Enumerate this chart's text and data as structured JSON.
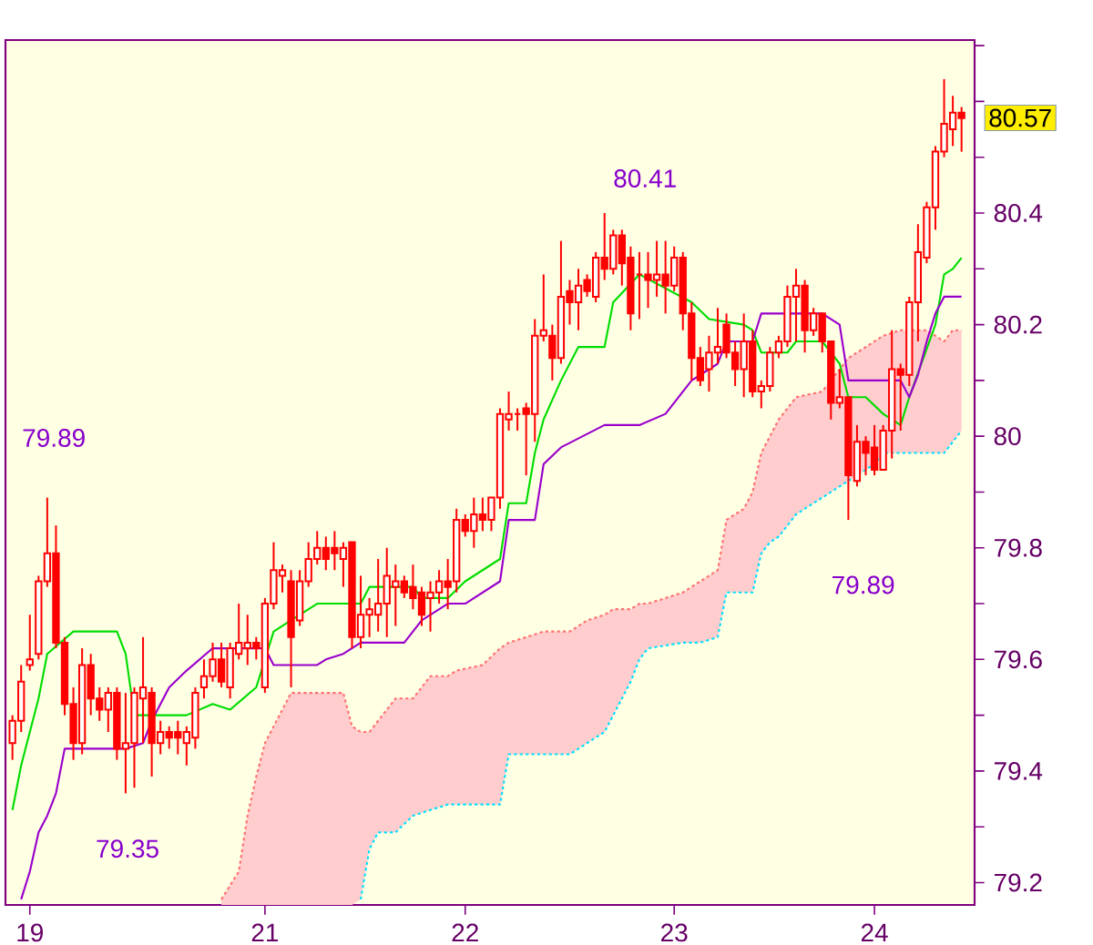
{
  "chart_data": {
    "type": "candlestick",
    "color": "#ff0000",
    "categories": [
      null,
      null,
      "19",
      null,
      null,
      null,
      null,
      null,
      null,
      null,
      null,
      null,
      null,
      null,
      null,
      null,
      null,
      null,
      null,
      null,
      null,
      null,
      null,
      null,
      null,
      null,
      null,
      null,
      null,
      "21",
      null,
      null,
      null,
      null,
      null,
      null,
      null,
      null,
      null,
      null,
      null,
      null,
      null,
      null,
      null,
      null,
      null,
      null,
      null,
      null,
      null,
      null,
      "22",
      null,
      null,
      null,
      null,
      null,
      null,
      null,
      null,
      null,
      null,
      null,
      null,
      null,
      null,
      null,
      null,
      null,
      null,
      null,
      null,
      null,
      null,
      null,
      "23",
      null,
      null,
      null,
      null,
      null,
      null,
      null,
      null,
      null,
      null,
      null,
      null,
      null,
      null,
      null,
      null,
      null,
      null,
      null,
      null,
      null,
      null,
      "24",
      null,
      null,
      null,
      null,
      null,
      null,
      null,
      null,
      null,
      null
    ],
    "ohlc": [
      [
        79.45,
        79.5,
        79.42,
        79.49
      ],
      [
        79.49,
        79.59,
        79.47,
        79.56
      ],
      [
        79.59,
        79.68,
        79.58,
        79.6
      ],
      [
        79.61,
        79.75,
        79.6,
        79.74
      ],
      [
        79.74,
        79.89,
        79.73,
        79.79
      ],
      [
        79.79,
        79.84,
        79.62,
        79.63
      ],
      [
        79.63,
        79.64,
        79.5,
        79.52
      ],
      [
        79.52,
        79.55,
        79.42,
        79.45
      ],
      [
        79.45,
        79.62,
        79.43,
        79.59
      ],
      [
        79.59,
        79.61,
        79.5,
        79.53
      ],
      [
        79.53,
        79.55,
        79.49,
        79.51
      ],
      [
        79.51,
        79.55,
        79.47,
        79.54
      ],
      [
        79.54,
        79.55,
        79.42,
        79.44
      ],
      [
        79.44,
        79.54,
        79.36,
        79.45
      ],
      [
        79.45,
        79.55,
        79.37,
        79.54
      ],
      [
        79.53,
        79.64,
        79.45,
        79.55
      ],
      [
        79.54,
        79.55,
        79.39,
        79.45
      ],
      [
        79.45,
        79.49,
        79.43,
        79.47
      ],
      [
        79.47,
        79.48,
        79.44,
        79.46
      ],
      [
        79.47,
        79.49,
        79.43,
        79.46
      ],
      [
        79.45,
        79.48,
        79.41,
        79.47
      ],
      [
        79.46,
        79.55,
        79.44,
        79.54
      ],
      [
        79.55,
        79.6,
        79.53,
        79.57
      ],
      [
        79.57,
        79.63,
        79.56,
        79.6
      ],
      [
        79.6,
        79.63,
        79.55,
        79.56
      ],
      [
        79.55,
        79.63,
        79.53,
        79.62
      ],
      [
        79.61,
        79.7,
        79.6,
        79.63
      ],
      [
        79.62,
        79.68,
        79.59,
        79.63
      ],
      [
        79.63,
        79.64,
        79.6,
        79.62
      ],
      [
        79.55,
        79.71,
        79.54,
        79.7
      ],
      [
        79.7,
        79.81,
        79.69,
        79.76
      ],
      [
        79.75,
        79.77,
        79.72,
        79.76
      ],
      [
        79.74,
        79.76,
        79.55,
        79.64
      ],
      [
        79.67,
        79.76,
        79.66,
        79.74
      ],
      [
        79.74,
        79.81,
        79.73,
        79.78
      ],
      [
        79.78,
        79.83,
        79.77,
        79.8
      ],
      [
        79.8,
        79.82,
        79.76,
        79.78
      ],
      [
        79.8,
        79.83,
        79.76,
        79.79
      ],
      [
        79.78,
        79.81,
        79.73,
        79.8
      ],
      [
        79.81,
        79.81,
        79.62,
        79.64
      ],
      [
        79.64,
        79.75,
        79.62,
        79.68
      ],
      [
        79.68,
        79.71,
        79.64,
        79.69
      ],
      [
        79.68,
        79.78,
        79.65,
        79.7
      ],
      [
        79.7,
        79.8,
        79.64,
        79.75
      ],
      [
        79.73,
        79.77,
        79.66,
        79.74
      ],
      [
        79.74,
        79.75,
        79.71,
        79.72
      ],
      [
        79.73,
        79.77,
        79.69,
        79.71
      ],
      [
        79.72,
        79.73,
        79.66,
        79.68
      ],
      [
        79.71,
        79.74,
        79.65,
        79.72
      ],
      [
        79.72,
        79.76,
        79.7,
        79.74
      ],
      [
        79.74,
        79.78,
        79.69,
        79.73
      ],
      [
        79.74,
        79.87,
        79.72,
        79.85
      ],
      [
        79.85,
        79.86,
        79.82,
        79.83
      ],
      [
        79.83,
        79.89,
        79.8,
        79.86
      ],
      [
        79.86,
        79.89,
        79.83,
        79.85
      ],
      [
        79.85,
        79.89,
        79.83,
        79.89
      ],
      [
        79.89,
        80.05,
        79.87,
        80.04
      ],
      [
        80.03,
        80.08,
        80.01,
        80.04
      ],
      [
        80.04,
        80.05,
        80.01,
        80.04
      ],
      [
        80.05,
        80.06,
        79.93,
        80.04
      ],
      [
        80.04,
        80.21,
        79.99,
        80.18
      ],
      [
        80.18,
        80.29,
        80.17,
        80.19
      ],
      [
        80.18,
        80.2,
        80.1,
        80.14
      ],
      [
        80.14,
        80.35,
        80.13,
        80.25
      ],
      [
        80.26,
        80.28,
        80.2,
        80.24
      ],
      [
        80.24,
        80.3,
        80.19,
        80.27
      ],
      [
        80.28,
        80.29,
        80.25,
        80.26
      ],
      [
        80.25,
        80.33,
        80.24,
        80.32
      ],
      [
        80.32,
        80.4,
        80.28,
        80.3
      ],
      [
        80.3,
        80.37,
        80.29,
        80.36
      ],
      [
        80.36,
        80.37,
        80.27,
        80.31
      ],
      [
        80.32,
        80.34,
        80.19,
        80.22
      ],
      [
        80.29,
        80.33,
        80.21,
        80.29
      ],
      [
        80.29,
        80.33,
        80.23,
        80.28
      ],
      [
        80.28,
        80.35,
        80.25,
        80.29
      ],
      [
        80.29,
        80.35,
        80.22,
        80.27
      ],
      [
        80.27,
        80.34,
        80.26,
        80.32
      ],
      [
        80.32,
        80.33,
        80.19,
        80.22
      ],
      [
        80.22,
        80.24,
        80.1,
        80.14
      ],
      [
        80.14,
        80.16,
        80.09,
        80.1
      ],
      [
        80.12,
        80.18,
        80.08,
        80.15
      ],
      [
        80.15,
        80.23,
        80.13,
        80.16
      ],
      [
        80.2,
        80.22,
        80.14,
        80.15
      ],
      [
        80.15,
        80.17,
        80.09,
        80.12
      ],
      [
        80.12,
        80.22,
        80.07,
        80.17
      ],
      [
        80.17,
        80.19,
        80.07,
        80.08
      ],
      [
        80.08,
        80.1,
        80.05,
        80.09
      ],
      [
        80.09,
        80.16,
        80.08,
        80.15
      ],
      [
        80.15,
        80.18,
        80.14,
        80.17
      ],
      [
        80.17,
        80.27,
        80.16,
        80.25
      ],
      [
        80.25,
        80.3,
        80.17,
        80.27
      ],
      [
        80.27,
        80.28,
        80.15,
        80.19
      ],
      [
        80.19,
        80.23,
        80.18,
        80.22
      ],
      [
        80.22,
        80.22,
        80.15,
        80.17
      ],
      [
        80.17,
        80.17,
        80.03,
        80.06
      ],
      [
        80.06,
        80.12,
        80.05,
        80.07
      ],
      [
        80.07,
        80.07,
        79.85,
        79.93
      ],
      [
        79.92,
        80.02,
        79.91,
        79.99
      ],
      [
        79.99,
        80.0,
        79.93,
        79.97
      ],
      [
        79.98,
        80.02,
        79.93,
        79.94
      ],
      [
        79.94,
        80.02,
        79.94,
        80.01
      ],
      [
        80.01,
        80.19,
        79.96,
        80.12
      ],
      [
        80.12,
        80.13,
        80.01,
        80.11
      ],
      [
        80.11,
        80.25,
        80.09,
        80.24
      ],
      [
        80.24,
        80.38,
        80.17,
        80.33
      ],
      [
        80.32,
        80.42,
        80.31,
        80.41
      ],
      [
        80.41,
        80.52,
        80.37,
        80.51
      ],
      [
        80.51,
        80.64,
        80.5,
        80.56
      ],
      [
        80.55,
        80.61,
        80.52,
        80.58
      ],
      [
        80.58,
        80.59,
        80.51,
        80.57
      ]
    ],
    "series": [
      {
        "type": "line",
        "color": "#ff7070",
        "line_style": "dotted",
        "values": [
          null,
          null,
          null,
          null,
          null,
          null,
          null,
          null,
          null,
          null,
          null,
          null,
          null,
          null,
          null,
          null,
          null,
          null,
          null,
          null,
          null,
          null,
          null,
          null,
          79.17,
          null,
          79.22,
          79.32,
          79.39,
          79.45,
          79.48,
          79.51,
          79.54,
          null,
          null,
          null,
          null,
          null,
          79.54,
          79.48,
          79.47,
          79.47,
          79.49,
          null,
          79.53,
          null,
          79.53,
          null,
          79.57,
          null,
          79.57,
          79.58,
          null,
          null,
          79.59,
          null,
          79.62,
          79.63,
          null,
          null,
          null,
          79.65,
          null,
          null,
          79.65,
          null,
          79.67,
          null,
          79.68,
          79.69,
          null,
          79.69,
          79.7,
          79.7,
          null,
          null,
          null,
          79.72,
          null,
          79.74,
          null,
          79.76,
          79.85,
          null,
          79.87,
          79.9,
          79.97,
          80.0,
          80.03,
          null,
          80.07,
          null,
          null,
          80.08,
          80.1,
          80.12,
          80.14,
          null,
          null,
          80.17,
          80.18,
          null,
          80.19,
          null,
          null,
          80.19,
          null,
          80.17,
          80.19,
          80.19
        ],
        "upper": [
          null,
          null,
          null,
          null,
          null,
          null,
          null,
          null,
          null,
          null,
          null,
          null,
          null,
          null,
          null,
          null,
          null,
          null,
          null,
          null,
          null,
          null,
          null,
          null,
          79.17,
          null,
          79.22,
          79.32,
          79.39,
          79.45,
          79.48,
          79.51,
          79.54,
          null,
          null,
          null,
          null,
          null,
          79.54,
          79.48,
          79.47,
          79.47,
          79.49,
          null,
          79.53,
          null,
          79.53,
          null,
          79.57,
          null,
          79.57,
          79.58,
          null,
          null,
          79.59,
          null,
          79.62,
          79.63,
          null,
          null,
          null,
          79.65,
          null,
          null,
          79.65,
          null,
          79.67,
          null,
          79.68,
          79.69,
          null,
          79.69,
          79.7,
          79.7,
          null,
          null,
          null,
          79.72,
          null,
          79.74,
          null,
          79.76,
          79.85,
          null,
          79.87,
          79.9,
          79.97,
          80.0,
          80.03,
          null,
          80.07,
          null,
          null,
          80.08,
          80.1,
          80.12,
          80.14,
          null,
          null,
          80.17,
          80.18,
          null,
          80.19,
          null,
          null,
          80.19,
          null,
          80.17,
          80.19,
          80.19
        ],
        "lower": [
          null,
          null,
          null,
          null,
          null,
          null,
          null,
          null,
          null,
          null,
          null,
          null,
          null,
          null,
          null,
          null,
          null,
          null,
          null,
          null,
          null,
          null,
          null,
          null,
          79.16,
          null,
          79.16,
          79.16,
          79.16,
          79.16,
          79.16,
          79.16,
          79.16,
          null,
          null,
          null,
          null,
          null,
          79.16,
          79.16,
          79.17,
          79.26,
          79.29,
          null,
          79.29,
          null,
          79.32,
          null,
          79.33,
          null,
          79.34,
          79.34,
          null,
          null,
          79.34,
          null,
          79.34,
          79.43,
          null,
          null,
          null,
          79.43,
          null,
          null,
          79.43,
          null,
          79.45,
          null,
          79.47,
          79.5,
          null,
          79.56,
          79.6,
          79.62,
          null,
          null,
          null,
          79.63,
          null,
          79.63,
          null,
          79.64,
          79.72,
          null,
          79.72,
          79.72,
          79.79,
          79.81,
          79.82,
          null,
          79.86,
          null,
          null,
          79.89,
          79.9,
          79.91,
          79.92,
          null,
          null,
          79.95,
          79.97,
          null,
          79.97,
          null,
          null,
          79.97,
          null,
          79.97,
          79.99,
          80.01
        ]
      },
      {
        "type": "line",
        "color": "#00e0ff",
        "line_style": "dotted",
        "values": [
          null,
          null,
          null,
          null,
          null,
          null,
          null,
          null,
          null,
          null,
          null,
          null,
          null,
          null,
          null,
          null,
          null,
          null,
          null,
          null,
          null,
          null,
          null,
          null,
          null,
          null,
          null,
          null,
          null,
          null,
          null,
          null,
          null,
          null,
          null,
          null,
          null,
          null,
          null,
          null,
          79.17,
          79.26,
          79.29,
          null,
          79.29,
          null,
          79.32,
          null,
          79.33,
          null,
          79.34,
          79.34,
          null,
          null,
          79.34,
          null,
          79.34,
          79.43,
          null,
          null,
          null,
          79.43,
          null,
          null,
          79.43,
          null,
          79.45,
          null,
          79.47,
          79.5,
          null,
          79.56,
          79.6,
          79.62,
          null,
          null,
          null,
          79.63,
          null,
          79.63,
          null,
          79.64,
          79.72,
          null,
          79.72,
          79.72,
          79.79,
          79.81,
          79.82,
          null,
          79.86,
          null,
          null,
          79.89,
          79.9,
          79.91,
          79.92,
          null,
          null,
          79.95,
          79.97,
          null,
          79.97,
          null,
          null,
          79.97,
          null,
          79.97,
          79.99,
          80.01
        ]
      },
      {
        "type": "line",
        "color": "#00dd00",
        "values": [
          79.33,
          79.41,
          null,
          79.53,
          79.61,
          null,
          null,
          79.65,
          null,
          null,
          null,
          null,
          79.65,
          79.61,
          79.5,
          null,
          null,
          null,
          null,
          null,
          79.5,
          null,
          null,
          79.52,
          null,
          79.51,
          null,
          null,
          79.55,
          null,
          79.65,
          null,
          79.67,
          null,
          null,
          79.7,
          null,
          null,
          null,
          null,
          79.7,
          79.73,
          null,
          null,
          null,
          null,
          79.73,
          79.71,
          null,
          null,
          79.71,
          null,
          79.74,
          null,
          79.76,
          null,
          79.78,
          79.88,
          null,
          79.88,
          79.97,
          80.03,
          null,
          80.1,
          null,
          80.16,
          null,
          null,
          80.16,
          80.24,
          null,
          null,
          80.29,
          null,
          null,
          null,
          null,
          null,
          80.24,
          null,
          80.21,
          null,
          null,
          null,
          80.2,
          80.19,
          80.15,
          null,
          null,
          80.15,
          80.17,
          null,
          null,
          80.17,
          null,
          80.13,
          80.07,
          null,
          80.07,
          null,
          80.04,
          null,
          80.02,
          80.07,
          null,
          null,
          80.2,
          80.29,
          80.3,
          80.32
        ]
      },
      {
        "type": "line",
        "color": "#9900cc",
        "values": [
          null,
          79.17,
          79.22,
          79.29,
          79.32,
          79.36,
          79.44,
          null,
          null,
          null,
          null,
          null,
          null,
          79.44,
          null,
          79.45,
          79.49,
          null,
          79.55,
          null,
          79.58,
          null,
          null,
          79.62,
          null,
          null,
          null,
          null,
          null,
          79.62,
          79.59,
          null,
          null,
          null,
          null,
          79.59,
          79.6,
          null,
          79.61,
          null,
          79.63,
          null,
          null,
          null,
          null,
          79.63,
          null,
          79.67,
          null,
          null,
          79.7,
          null,
          79.7,
          null,
          null,
          null,
          79.74,
          79.85,
          null,
          null,
          79.85,
          79.95,
          null,
          79.98,
          null,
          null,
          null,
          null,
          80.02,
          null,
          null,
          null,
          80.02,
          null,
          null,
          80.04,
          null,
          null,
          80.1,
          80.11,
          null,
          80.13,
          80.17,
          null,
          null,
          80.17,
          80.22,
          null,
          null,
          null,
          null,
          null,
          null,
          80.22,
          null,
          80.2,
          80.1,
          null,
          null,
          null,
          null,
          null,
          80.1,
          80.07,
          80.11,
          80.17,
          80.22,
          80.25,
          null,
          80.25
        ]
      }
    ],
    "ylim": [
      79.16,
      80.71
    ],
    "yticks": [
      79.2,
      {
        "value": 79.3,
        "label": null
      },
      79.4,
      {
        "value": 79.5,
        "label": null
      },
      79.6,
      {
        "value": 79.7,
        "label": null
      },
      79.8,
      {
        "value": 79.9,
        "label": null
      },
      80,
      {
        "value": 80.1,
        "label": null
      },
      80.2,
      {
        "value": 80.3,
        "label": null
      },
      80.4,
      {
        "value": 80.5,
        "label": null
      },
      {
        "value": 80.6,
        "label": null
      },
      {
        "value": 80.7,
        "label": null
      }
    ],
    "annotations": [
      "79.89",
      "80.41",
      "79.89",
      "79.35",
      "80.57"
    ]
  }
}
